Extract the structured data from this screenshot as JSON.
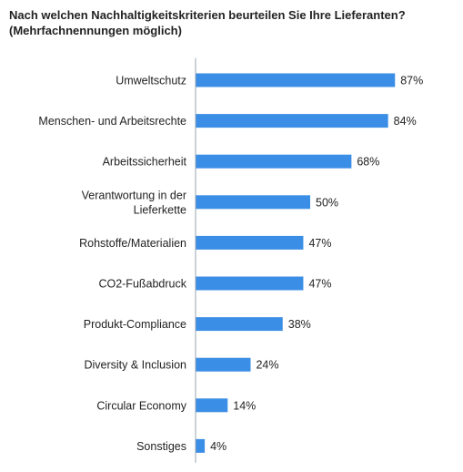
{
  "title_line1": "Nach welchen Nachhaltigkeitskriterien beurteilen Sie Ihre Lieferanten?",
  "title_line2": "(Mehrfachnennungen möglich)",
  "colors": {
    "bar": "#3b8ee6",
    "axis": "#9aa3ad"
  },
  "chart_data": {
    "type": "bar",
    "orientation": "horizontal",
    "title": "Nach welchen Nachhaltigkeitskriterien beurteilen Sie Ihre Lieferanten? (Mehrfachnennungen möglich)",
    "categories": [
      [
        "Umweltschutz"
      ],
      [
        "Menschen- und Arbeitsrechte"
      ],
      [
        "Arbeitssicherheit"
      ],
      [
        "Verantwortung in der",
        "Lieferkette"
      ],
      [
        "Rohstoffe/Materialien"
      ],
      [
        "CO2-Fußabdruck"
      ],
      [
        "Produkt-Compliance"
      ],
      [
        "Diversity & Inclusion"
      ],
      [
        "Circular Economy"
      ],
      [
        "Sonstiges"
      ]
    ],
    "values": [
      87,
      84,
      68,
      50,
      47,
      47,
      38,
      24,
      14,
      4
    ],
    "value_labels": [
      "87%",
      "84%",
      "68%",
      "50%",
      "47%",
      "47%",
      "38%",
      "24%",
      "14%",
      "4%"
    ],
    "xlim": [
      0,
      100
    ]
  }
}
